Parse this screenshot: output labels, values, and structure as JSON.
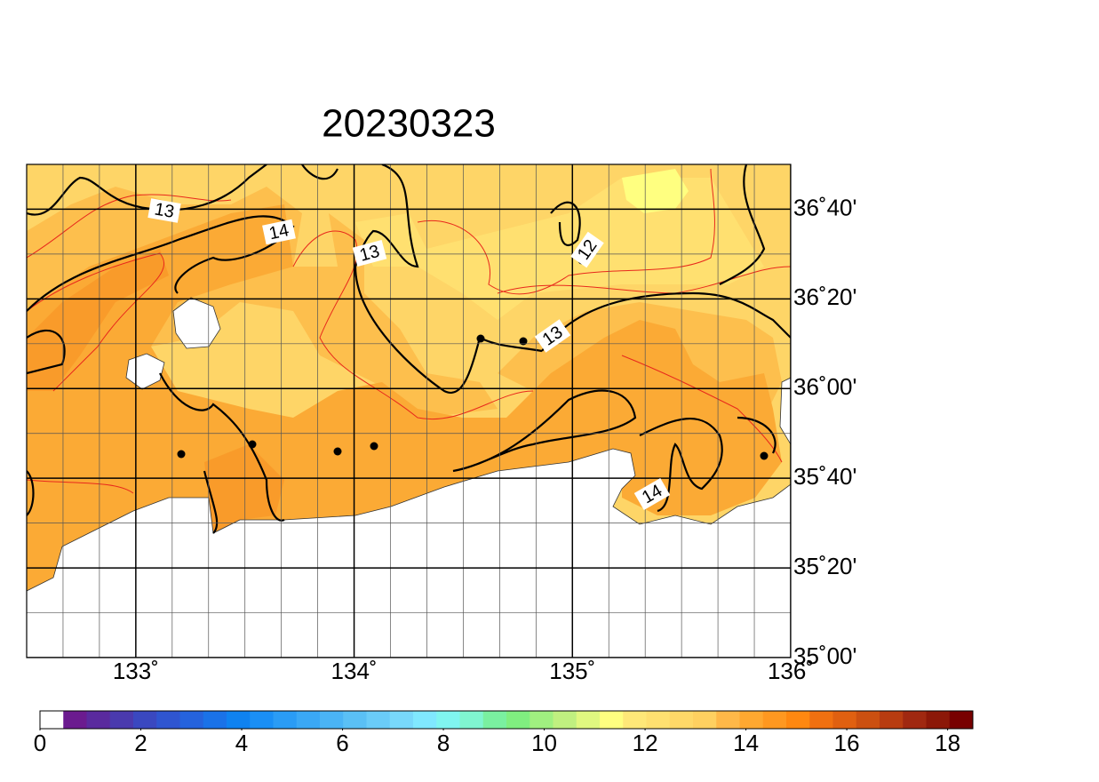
{
  "map": {
    "title": "20230323",
    "xlim": [
      132.5,
      136
    ],
    "ylim": [
      35,
      36.8333
    ],
    "xticks": [
      {
        "value": 133,
        "label": "133˚"
      },
      {
        "value": 134,
        "label": "134˚"
      },
      {
        "value": 135,
        "label": "135˚"
      },
      {
        "value": 136,
        "label": "136˚"
      }
    ],
    "yticks": [
      {
        "value": 35,
        "label": "35˚00'"
      },
      {
        "value": 35.3333,
        "label": "35˚20'"
      },
      {
        "value": 35.6667,
        "label": "35˚40'"
      },
      {
        "value": 36,
        "label": "36˚00'"
      },
      {
        "value": 36.3333,
        "label": "36˚20'"
      },
      {
        "value": 36.6667,
        "label": "36˚40'"
      }
    ],
    "contour_labels": [
      "13",
      "14",
      "13",
      "12",
      "13",
      "14"
    ]
  },
  "colorbar": {
    "range": [
      0,
      18.5
    ],
    "ticks": [
      0,
      2,
      4,
      6,
      8,
      10,
      12,
      14,
      16,
      18
    ],
    "colors": [
      "#ffffff",
      "#6b1b8f",
      "#5a2a9e",
      "#4a3aae",
      "#3a48c0",
      "#2f55d0",
      "#2563dd",
      "#1a72e8",
      "#0f82f0",
      "#1a8ff5",
      "#2a9cf5",
      "#3aa8f5",
      "#4ab4f5",
      "#5ac0f5",
      "#6accf8",
      "#78d8fb",
      "#80e8ff",
      "#80f5f0",
      "#80f5d0",
      "#7af0a0",
      "#80ee80",
      "#a0f080",
      "#c0f080",
      "#e0f880",
      "#ffff80",
      "#ffe878",
      "#ffe070",
      "#ffd868",
      "#ffd060",
      "#ffb848",
      "#ffa830",
      "#ff9820",
      "#ff8810",
      "#f07010",
      "#e06010",
      "#cc5010",
      "#b83c10",
      "#a02810",
      "#8c1808",
      "#780000"
    ]
  }
}
